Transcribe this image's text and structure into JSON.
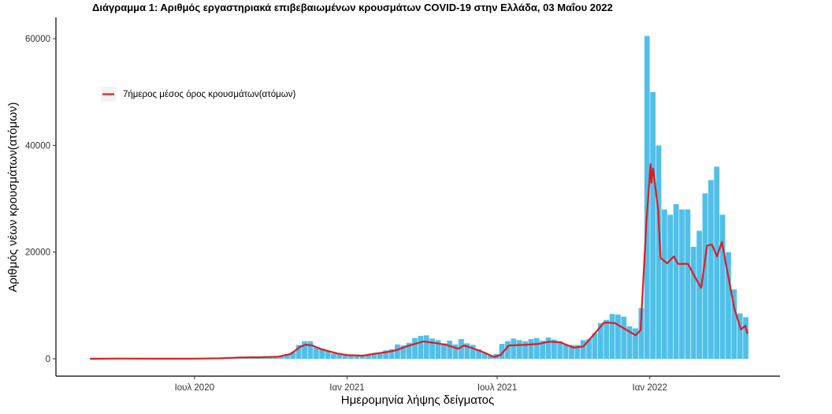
{
  "chart_data": {
    "type": "bar",
    "title": "Διάγραμμα 1: Αριθμός εργαστηριακά επιβεβαιωμένων κρουσμάτων COVID-19 στην Ελλάδα, 03 Μαΐου 2022",
    "xlabel": "Ημερομηνία λήψης δείγματος",
    "ylabel": "Αριθμός νέων κρουσμάτων(ατόμων)",
    "xlim": [
      "2020-01-16",
      "2022-06-07"
    ],
    "ylim": [
      -3250,
      64000
    ],
    "x_ticks": [
      {
        "date": "2020-07-01",
        "label": "Ιουλ 2020"
      },
      {
        "date": "2021-01-01",
        "label": "Ιαν 2021"
      },
      {
        "date": "2021-07-01",
        "label": "Ιουλ 2021"
      },
      {
        "date": "2022-01-01",
        "label": "Ιαν 2022"
      }
    ],
    "y_ticks": [
      {
        "value": 0,
        "label": "0"
      },
      {
        "value": 20000,
        "label": "20000"
      },
      {
        "value": 40000,
        "label": "40000"
      },
      {
        "value": 60000,
        "label": "60000"
      }
    ],
    "grid": false,
    "legend": {
      "position": "top-left",
      "entries": [
        "7ήμερος μέσος όρος κρουσμάτων(ατόμων)"
      ]
    },
    "colors": {
      "bars": "#3cb9e8",
      "line": "#e41a1c",
      "legend_key_bg": "#f2f2f2"
    },
    "cases_series": {
      "start": "2020-02-26",
      "interval_days": 7,
      "values": [
        30,
        50,
        100,
        80,
        100,
        90,
        130,
        80,
        150,
        30,
        20,
        30,
        20,
        15,
        20,
        30,
        30,
        40,
        30,
        40,
        50,
        50,
        110,
        150,
        260,
        280,
        300,
        250,
        370,
        400,
        450,
        350,
        460,
        510,
        880,
        1300,
        2600,
        3300,
        3300,
        2100,
        1900,
        1500,
        1000,
        1000,
        900,
        800,
        750,
        600,
        800,
        1000,
        1100,
        1600,
        1800,
        2700,
        2500,
        3000,
        3900,
        4300,
        4400,
        3800,
        3500,
        2900,
        3400,
        2700,
        3700,
        2900,
        2600,
        1800,
        1200,
        700,
        900,
        2800,
        3300,
        3800,
        3500,
        3300,
        3700,
        3900,
        3400,
        4000,
        3600,
        3300,
        2700,
        2600,
        2600,
        3500,
        3700,
        4800,
        6700,
        7300,
        8400,
        8300,
        7900,
        6100,
        5700,
        9500,
        60500,
        50000,
        40000,
        28000,
        27000,
        29000,
        28000,
        28000,
        21000,
        24000,
        31000,
        33500,
        36000,
        27000,
        20000,
        13000,
        8500,
        7800
      ]
    },
    "series": [
      {
        "name": "7ήμερος μέσος όρος κρουσμάτων(ατόμων)",
        "points": [
          [
            "2020-02-26",
            0
          ],
          [
            "2020-04-01",
            50
          ],
          [
            "2020-05-01",
            30
          ],
          [
            "2020-06-01",
            10
          ],
          [
            "2020-07-01",
            30
          ],
          [
            "2020-08-01",
            100
          ],
          [
            "2020-08-25",
            250
          ],
          [
            "2020-09-20",
            300
          ],
          [
            "2020-10-10",
            400
          ],
          [
            "2020-10-25",
            900
          ],
          [
            "2020-11-05",
            2200
          ],
          [
            "2020-11-12",
            2650
          ],
          [
            "2020-11-20",
            2500
          ],
          [
            "2020-12-01",
            1800
          ],
          [
            "2020-12-20",
            1000
          ],
          [
            "2021-01-01",
            700
          ],
          [
            "2021-01-20",
            600
          ],
          [
            "2021-02-01",
            900
          ],
          [
            "2021-02-20",
            1300
          ],
          [
            "2021-03-01",
            1600
          ],
          [
            "2021-03-15",
            2400
          ],
          [
            "2021-04-03",
            3250
          ],
          [
            "2021-04-20",
            2900
          ],
          [
            "2021-05-01",
            2600
          ],
          [
            "2021-05-15",
            1900
          ],
          [
            "2021-05-22",
            2500
          ],
          [
            "2021-06-01",
            2000
          ],
          [
            "2021-06-15",
            1200
          ],
          [
            "2021-06-27",
            340
          ],
          [
            "2021-07-05",
            700
          ],
          [
            "2021-07-15",
            2500
          ],
          [
            "2021-08-01",
            2600
          ],
          [
            "2021-08-20",
            2800
          ],
          [
            "2021-09-01",
            3200
          ],
          [
            "2021-09-15",
            3100
          ],
          [
            "2021-10-01",
            2100
          ],
          [
            "2021-10-13",
            2300
          ],
          [
            "2021-11-07",
            6800
          ],
          [
            "2021-11-20",
            6700
          ],
          [
            "2021-12-15",
            4400
          ],
          [
            "2021-12-21",
            5400
          ],
          [
            "2021-12-28",
            25800
          ],
          [
            "2022-01-02",
            36500
          ],
          [
            "2022-01-03",
            33000
          ],
          [
            "2022-01-05",
            35700
          ],
          [
            "2022-01-11",
            28000
          ],
          [
            "2022-01-14",
            18900
          ],
          [
            "2022-01-22",
            17900
          ],
          [
            "2022-01-30",
            19200
          ],
          [
            "2022-02-04",
            17800
          ],
          [
            "2022-02-16",
            17800
          ],
          [
            "2022-02-26",
            14900
          ],
          [
            "2022-03-04",
            13300
          ],
          [
            "2022-03-11",
            21200
          ],
          [
            "2022-03-17",
            21400
          ],
          [
            "2022-03-23",
            19200
          ],
          [
            "2022-03-29",
            21900
          ],
          [
            "2022-04-04",
            16800
          ],
          [
            "2022-04-13",
            9400
          ],
          [
            "2022-04-21",
            5500
          ],
          [
            "2022-04-26",
            6200
          ],
          [
            "2022-04-29",
            4700
          ]
        ]
      }
    ]
  }
}
